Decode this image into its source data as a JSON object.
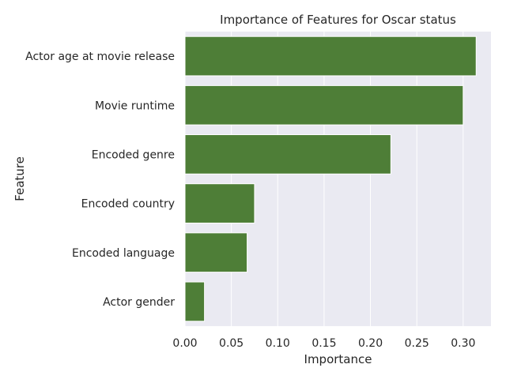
{
  "chart_data": {
    "type": "bar",
    "orientation": "horizontal",
    "title": "Importance of Features for Oscar status",
    "xlabel": "Importance",
    "ylabel": "Feature",
    "categories": [
      "Actor age at movie release",
      "Movie runtime",
      "Encoded genre",
      "Encoded country",
      "Encoded language",
      "Actor gender"
    ],
    "values": [
      0.314,
      0.3,
      0.222,
      0.075,
      0.067,
      0.021
    ],
    "xlim": [
      0,
      0.33
    ],
    "xticks": [
      0.0,
      0.05,
      0.1,
      0.15,
      0.2,
      0.25,
      0.3
    ],
    "xtick_labels": [
      "0.00",
      "0.05",
      "0.10",
      "0.15",
      "0.20",
      "0.25",
      "0.30"
    ],
    "grid": true,
    "bar_color": "#4e7e37",
    "background_color": "#eaeaf2",
    "grid_color": "#ffffff"
  }
}
